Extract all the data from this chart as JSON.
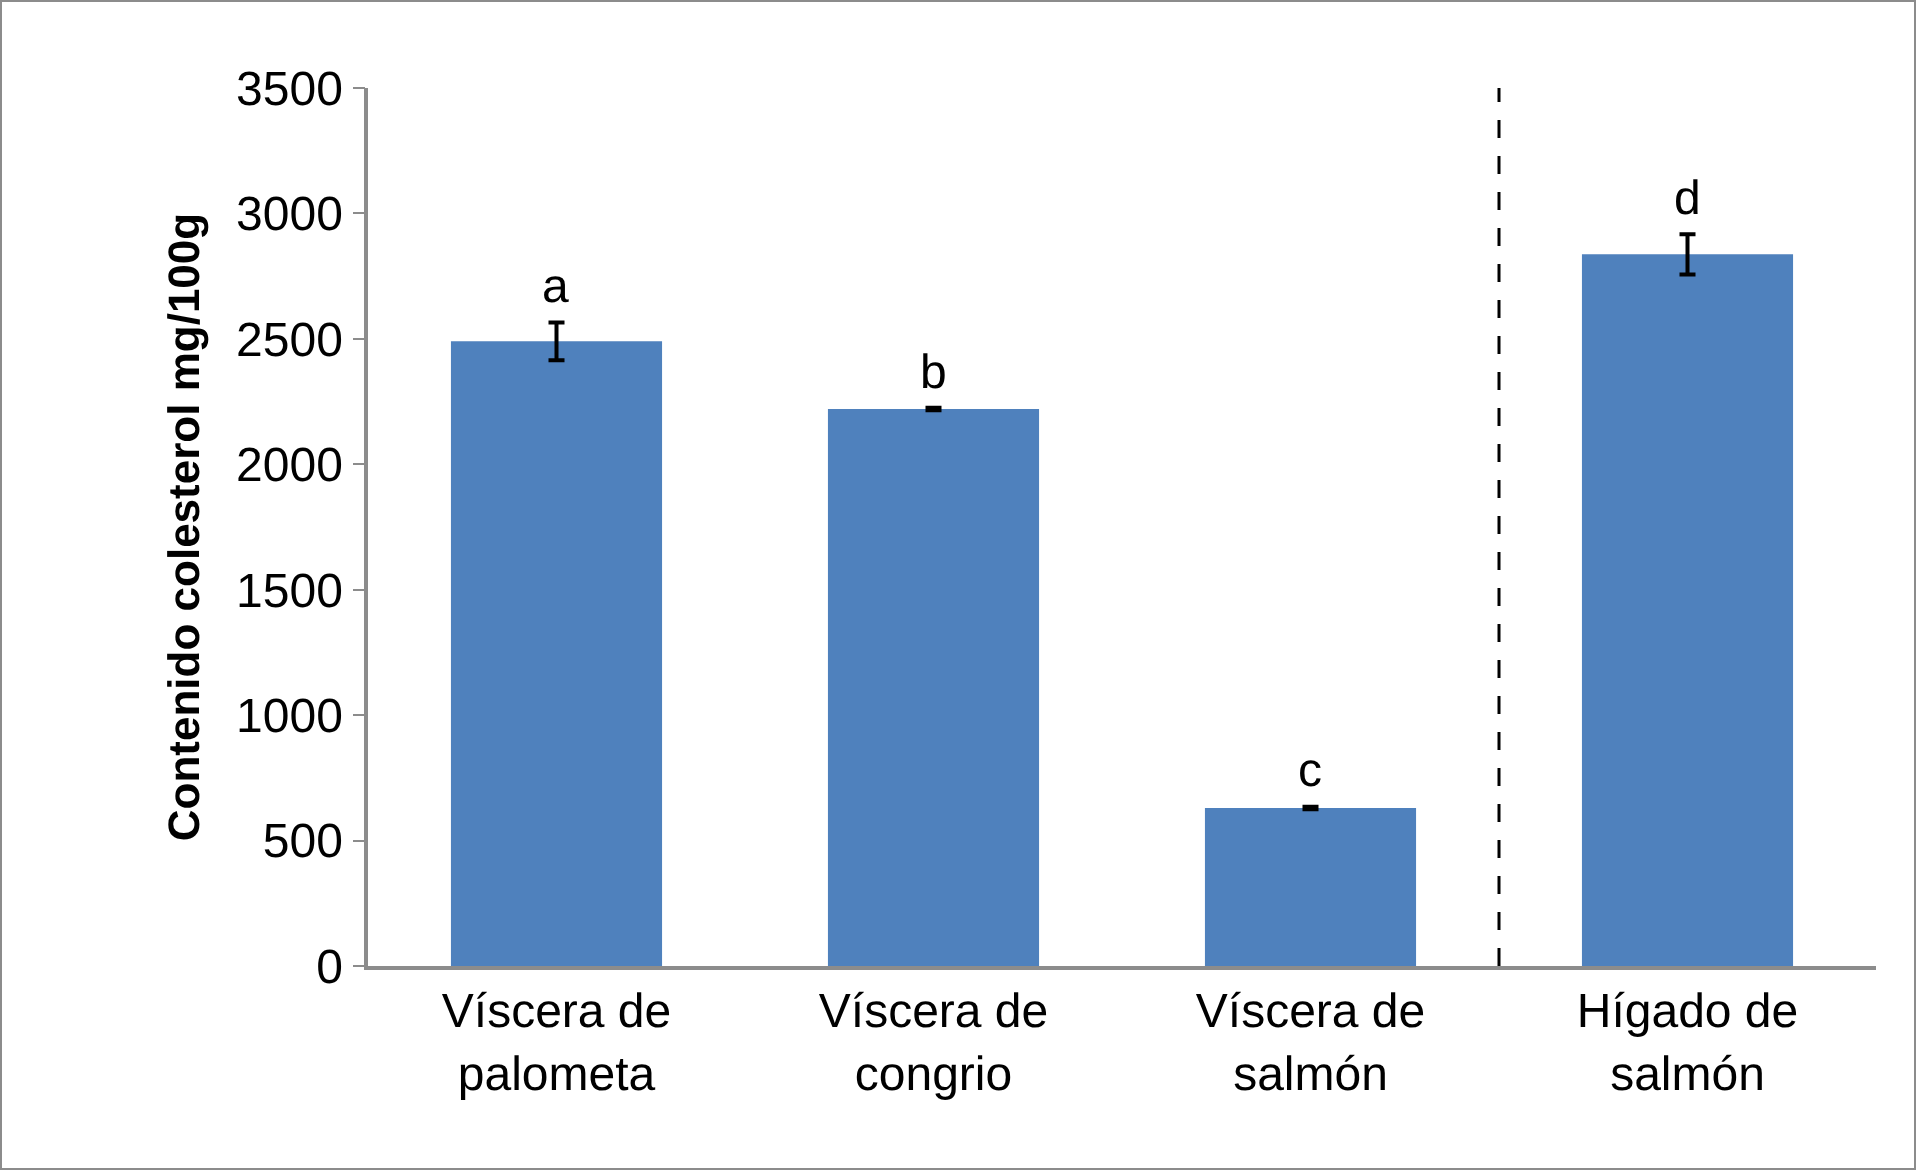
{
  "chart_data": {
    "type": "bar",
    "ylabel": "Contenido colesterol mg/100g",
    "categories": [
      "Víscera de palometa",
      "Víscera de congrio",
      "Víscera de salmón",
      "Hígado de salmón"
    ],
    "values": [
      2490,
      2220,
      630,
      2837
    ],
    "errors": [
      75,
      5,
      5,
      80
    ],
    "color": "#4f81bd",
    "value_labels": [
      "a",
      "b",
      "c",
      "d"
    ],
    "ylim": [
      0,
      3500
    ],
    "yticks": [
      0,
      500,
      1000,
      1500,
      2000,
      2500,
      3000,
      3500
    ],
    "grid": false
  }
}
